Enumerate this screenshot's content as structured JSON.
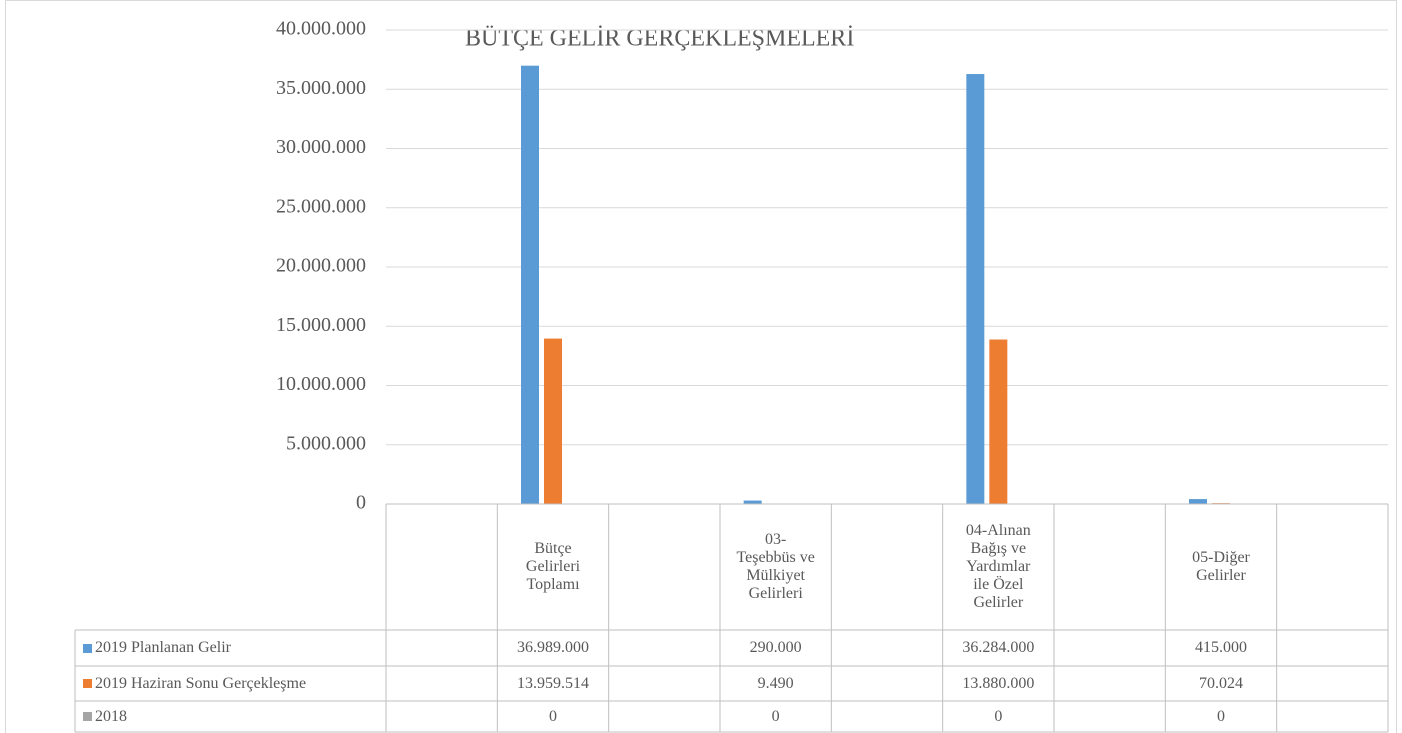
{
  "chart_data": {
    "type": "bar",
    "title": "BÜTÇE GELİR GERÇEKLEŞMELERİ",
    "categories": [
      null,
      "Bütçe Gelirleri Toplamı",
      null,
      "03-Teşebbüs ve Mülkiyet Gelirleri",
      null,
      "04-Alınan Bağış ve Yardımlar ile Özel Gelirler",
      null,
      "05-Diğer Gelirler",
      null
    ],
    "series": [
      {
        "name": "2019 Planlanan Gelir",
        "color": "#5b9bd5",
        "values": [
          null,
          36989000,
          null,
          290000,
          null,
          36284000,
          null,
          415000,
          null
        ],
        "value_labels": [
          null,
          "36.989.000",
          null,
          "290.000",
          null,
          "36.284.000",
          null,
          "415.000",
          null
        ]
      },
      {
        "name": "2019 Haziran Sonu Gerçekleşme",
        "color": "#ed7d31",
        "values": [
          null,
          13959514,
          null,
          9490,
          null,
          13880000,
          null,
          70024,
          null
        ],
        "value_labels": [
          null,
          "13.959.514",
          null,
          "9.490",
          null,
          "13.880.000",
          null,
          "70.024",
          null
        ]
      },
      {
        "name": "2018",
        "color": "#a5a5a5",
        "values": [
          null,
          0,
          null,
          0,
          null,
          0,
          null,
          0,
          null
        ]
      }
    ],
    "ylim": [
      0,
      40000000
    ],
    "yticks": [
      0,
      {
        "value": 5000000,
        "label": "5.000.000"
      },
      {
        "value": 10000000,
        "label": "10.000.000"
      },
      {
        "value": 15000000,
        "label": "15.000.000"
      },
      {
        "value": 20000000,
        "label": "20.000.000"
      },
      {
        "value": 25000000,
        "label": "25.000.000"
      },
      {
        "value": 30000000,
        "label": "30.000.000"
      },
      {
        "value": 35000000,
        "label": "35.000.000"
      },
      {
        "value": 40000000,
        "label": "40.000.000"
      }
    ],
    "grid": true
  }
}
